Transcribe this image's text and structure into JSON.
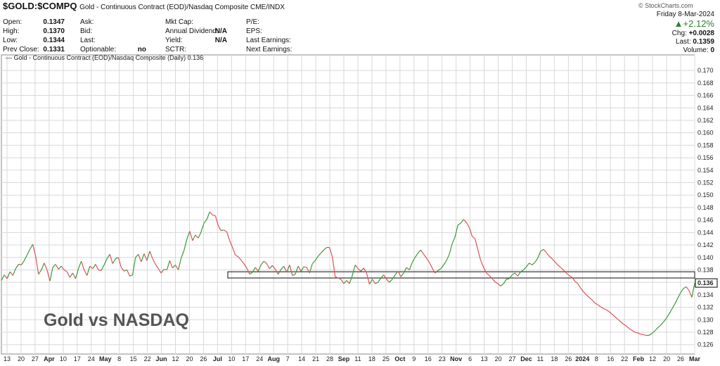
{
  "header": {
    "symbol": "$GOLD:$COMPQ",
    "description": "Gold - Continuous Contract (EOD)/Nasdaq Composite CME/INDX",
    "credit": "© StockCharts.com",
    "stats": [
      {
        "label": "Open:",
        "value": "0.1347"
      },
      {
        "label": "High:",
        "value": "0.1370"
      },
      {
        "label": "Low:",
        "value": "0.1344"
      },
      {
        "label": "Prev Close:",
        "value": "0.1331"
      }
    ],
    "stats2": [
      {
        "label": "Ask:",
        "value": ""
      },
      {
        "label": "Bid:",
        "value": ""
      },
      {
        "label": "Last:",
        "value": ""
      },
      {
        "label": "Optionable:",
        "value": "no"
      }
    ],
    "stats3": [
      {
        "label": "Mkt Cap:",
        "value": ""
      },
      {
        "label": "Annual Dividend:",
        "value": "N/A"
      },
      {
        "label": "Yield:",
        "value": "N/A"
      },
      {
        "label": "SCTR:",
        "value": ""
      }
    ],
    "stats4": [
      {
        "label": "P/E:"
      },
      {
        "label": "EPS:"
      },
      {
        "label": "Last Earnings:"
      },
      {
        "label": "Next Earnings:"
      }
    ],
    "date": "Friday  8-Mar-2024",
    "change_pct": "▲+2.12%",
    "chg_label": "Chg:",
    "chg_value": "+0.0028",
    "last_label": "Last:",
    "last_value": "0.1359",
    "volume_label": "Volume:",
    "volume_value": "0"
  },
  "overlay_text": "Gold vs NASDAQ",
  "colors": {
    "up": "#3a9a3a",
    "down": "#e0505a",
    "grid": "#d8d8d8",
    "box": "#333333"
  },
  "chart_data": {
    "type": "line",
    "legend": "Gold - Continuous Contract (EOD)/Nasdaq Composite (Daily) 0.136",
    "current_value_label": "0.136",
    "ylim": [
      0.1245,
      0.1725
    ],
    "ytick_labels": [
      "0.126",
      "0.128",
      "0.130",
      "0.132",
      "0.134",
      "0.136",
      "0.138",
      "0.140",
      "0.142",
      "0.144",
      "0.146",
      "0.148",
      "0.150",
      "0.152",
      "0.154",
      "0.156",
      "0.158",
      "0.160",
      "0.162",
      "0.164",
      "0.166",
      "0.168",
      "0.170"
    ],
    "xtick_labels": [
      "13",
      "20",
      "27",
      "Apr",
      "10",
      "17",
      "24",
      "May",
      "8",
      "15",
      "22",
      "Jun",
      "12",
      "20",
      "26",
      "Jul",
      "10",
      "17",
      "24",
      "Aug",
      "7",
      "14",
      "21",
      "28",
      "Sep",
      "11",
      "18",
      "25",
      "Oct",
      "9",
      "16",
      "23",
      "Nov",
      "6",
      "13",
      "20",
      "27",
      "Dec",
      "11",
      "18",
      "26",
      "2024",
      "8",
      "16",
      "22",
      "Feb",
      "12",
      "20",
      "26",
      "Mar"
    ],
    "bold_xticks": [
      "Apr",
      "May",
      "Jun",
      "Jul",
      "Aug",
      "Sep",
      "Oct",
      "Nov",
      "Dec",
      "2024",
      "Feb",
      "Mar"
    ],
    "support_zone": [
      0.1367,
      0.1377
    ],
    "values": [
      0.1363,
      0.1372,
      0.1366,
      0.1377,
      0.1371,
      0.1382,
      0.1389,
      0.1388,
      0.1395,
      0.1404,
      0.1413,
      0.1421,
      0.1402,
      0.1373,
      0.138,
      0.1391,
      0.138,
      0.1362,
      0.1384,
      0.1389,
      0.1381,
      0.1386,
      0.138,
      0.1377,
      0.1368,
      0.1375,
      0.1366,
      0.1382,
      0.1394,
      0.138,
      0.1371,
      0.1386,
      0.1382,
      0.1389,
      0.138,
      0.1379,
      0.1388,
      0.1398,
      0.1405,
      0.139,
      0.1398,
      0.14,
      0.1384,
      0.1378,
      0.138,
      0.137,
      0.1372,
      0.14,
      0.1405,
      0.1393,
      0.1406,
      0.1395,
      0.141,
      0.1398,
      0.1389,
      0.1382,
      0.1375,
      0.1381,
      0.138,
      0.1395,
      0.1383,
      0.1388,
      0.138,
      0.1399,
      0.1411,
      0.1429,
      0.1442,
      0.1427,
      0.1436,
      0.1431,
      0.1441,
      0.1455,
      0.1461,
      0.1473,
      0.1468,
      0.1467,
      0.1451,
      0.1443,
      0.1444,
      0.1441,
      0.1427,
      0.1416,
      0.1404,
      0.1401,
      0.1396,
      0.139,
      0.1383,
      0.1373,
      0.1376,
      0.1384,
      0.1378,
      0.1388,
      0.1394,
      0.139,
      0.1382,
      0.1387,
      0.1381,
      0.1373,
      0.1381,
      0.1386,
      0.1376,
      0.1388,
      0.1371,
      0.1373,
      0.1386,
      0.1378,
      0.1385,
      0.1384,
      0.1375,
      0.139,
      0.1395,
      0.1402,
      0.1407,
      0.1412,
      0.1416,
      0.1416,
      0.1401,
      0.1369,
      0.1367,
      0.1365,
      0.1358,
      0.1363,
      0.1358,
      0.1371,
      0.1388,
      0.1382,
      0.1378,
      0.1383,
      0.1375,
      0.1357,
      0.1365,
      0.1358,
      0.136,
      0.1367,
      0.1372,
      0.1365,
      0.136,
      0.1365,
      0.1372,
      0.1378,
      0.1369,
      0.1375,
      0.1384,
      0.138,
      0.1392,
      0.14,
      0.1407,
      0.1412,
      0.1405,
      0.1399,
      0.1392,
      0.1383,
      0.1375,
      0.1379,
      0.1382,
      0.1388,
      0.1395,
      0.1405,
      0.1422,
      0.1433,
      0.1452,
      0.1455,
      0.1461,
      0.1456,
      0.1448,
      0.1434,
      0.143,
      0.1412,
      0.1395,
      0.1384,
      0.1375,
      0.1371,
      0.1366,
      0.1361,
      0.1358,
      0.1354,
      0.1358,
      0.1365,
      0.1366,
      0.1372,
      0.1375,
      0.137,
      0.1377,
      0.138,
      0.1385,
      0.1391,
      0.1388,
      0.1392,
      0.1399,
      0.141,
      0.1413,
      0.1408,
      0.1402,
      0.1398,
      0.1393,
      0.1388,
      0.1384,
      0.138,
      0.1375,
      0.1371,
      0.1368,
      0.1362,
      0.1358,
      0.1351,
      0.1345,
      0.134,
      0.1336,
      0.1332,
      0.1327,
      0.1324,
      0.1321,
      0.1318,
      0.1316,
      0.1313,
      0.1309,
      0.1305,
      0.1301,
      0.1297,
      0.1293,
      0.129,
      0.1286,
      0.1283,
      0.128,
      0.1279,
      0.1277,
      0.1276,
      0.1275,
      0.1275,
      0.1278,
      0.1282,
      0.1287,
      0.1291,
      0.1296,
      0.1302,
      0.1309,
      0.1317,
      0.1325,
      0.1334,
      0.1343,
      0.135,
      0.1353,
      0.1347,
      0.1336,
      0.1359
    ]
  }
}
